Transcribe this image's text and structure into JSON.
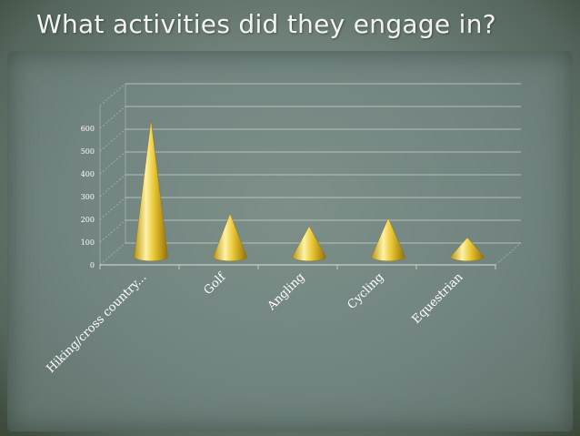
{
  "slide": {
    "title": "What activities did they engage in?"
  },
  "chart_data": {
    "type": "bar",
    "shape": "cone",
    "title": "",
    "xlabel": "",
    "ylabel": "",
    "categories": [
      "Hiking/cross country...",
      "Golf",
      "Angling",
      "Cycling",
      "Equestrian"
    ],
    "values": [
      600,
      190,
      135,
      170,
      85
    ],
    "yticks": [
      "0",
      "100",
      "200",
      "300",
      "400",
      "500",
      "600"
    ],
    "ylim": [
      0,
      700
    ],
    "grid": true,
    "legend": "none",
    "colors": {
      "cone_light": "#fff2a6",
      "cone_mid": "#e8c531",
      "cone_dark": "#9a7a10",
      "grid": "#d9dfd6",
      "label": "#ffffff"
    }
  }
}
